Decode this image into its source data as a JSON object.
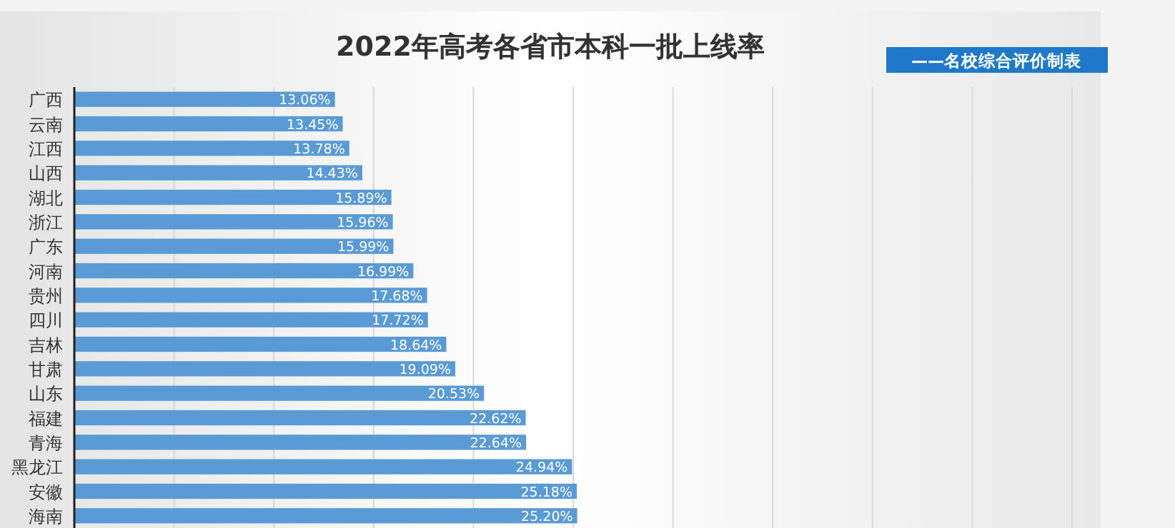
{
  "chart_data": {
    "type": "bar",
    "orientation": "horizontal",
    "title": "2022年高考各省市本科一批上线率",
    "annotations": [
      "——名校综合评价制表"
    ],
    "categories": [
      "广西",
      "云南",
      "江西",
      "山西",
      "湖北",
      "浙江",
      "广东",
      "河南",
      "贵州",
      "四川",
      "吉林",
      "甘肃",
      "山东",
      "福建",
      "青海",
      "黑龙江",
      "安徽",
      "海南"
    ],
    "values": [
      13.06,
      13.45,
      13.78,
      14.43,
      15.89,
      15.96,
      15.99,
      16.99,
      17.68,
      17.72,
      18.64,
      19.09,
      20.53,
      22.62,
      22.64,
      24.94,
      25.18,
      25.2
    ],
    "value_labels": [
      "13.06%",
      "13.45%",
      "13.78%",
      "14.43%",
      "15.89%",
      "15.96%",
      "15.99%",
      "16.99%",
      "17.68%",
      "17.72%",
      "18.64%",
      "19.09%",
      "20.53%",
      "22.62%",
      "22.64%",
      "24.94%",
      "25.18%",
      "25.20%"
    ],
    "color": "#5b9bd5",
    "xlim": [
      0,
      50
    ],
    "xticks": [
      {
        "value": 0,
        "label": null
      },
      {
        "value": 5,
        "label": null
      },
      {
        "value": 10,
        "label": null
      },
      {
        "value": 15,
        "label": null
      },
      {
        "value": 20,
        "label": null
      },
      {
        "value": 25,
        "label": null
      },
      {
        "value": 30,
        "label": null
      },
      {
        "value": 35,
        "label": null
      },
      {
        "value": 40,
        "label": null
      },
      {
        "value": 45,
        "label": null
      },
      {
        "value": 50,
        "label": null
      }
    ],
    "grid": "x",
    "tick_labels": "y"
  }
}
